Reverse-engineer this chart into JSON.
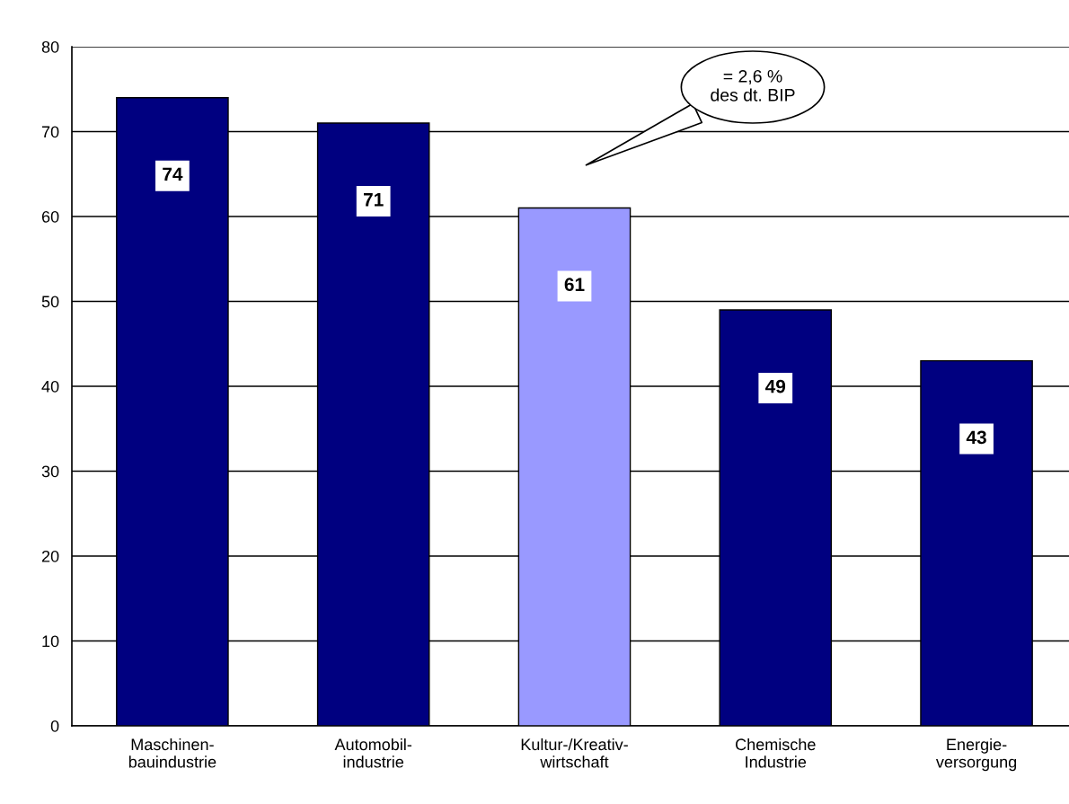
{
  "chart_data": {
    "type": "bar",
    "categories": [
      "Maschinen-\nbauindustrie",
      "Automobil-\nindustrie",
      "Kultur-/Kreativ-\nwirtschaft",
      "Chemische\nIndustrie",
      "Energie-\nversorgung"
    ],
    "values": [
      74,
      71,
      61,
      49,
      43
    ],
    "colors": [
      "#000080",
      "#000080",
      "#9999ff",
      "#000080",
      "#000080"
    ],
    "data_labels": true,
    "ylim": [
      0,
      80
    ],
    "yticks": [
      0,
      10,
      20,
      30,
      40,
      50,
      60,
      70,
      80
    ],
    "grid": "y",
    "legend": false,
    "annotations": [
      "= 2,6 %\ndes dt. BIP"
    ]
  }
}
